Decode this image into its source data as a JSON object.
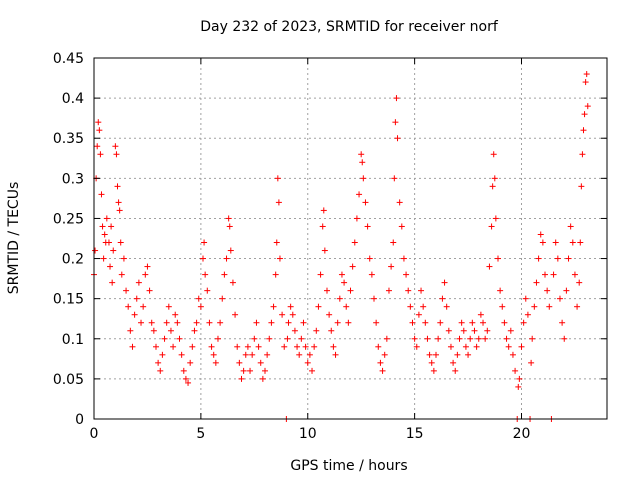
{
  "chart_data": {
    "type": "scatter",
    "title": "Day 232 of 2023, SRMTID for receiver norf",
    "xlabel": "GPS time / hours",
    "ylabel": "SRMTID / TECUs",
    "xlim": [
      0,
      24
    ],
    "ylim": [
      0,
      0.45
    ],
    "x_ticks": [
      0,
      5,
      10,
      15,
      20
    ],
    "x_tick_labels": [
      "0",
      "5",
      "10",
      "15",
      "20"
    ],
    "y_ticks": [
      0,
      0.05,
      0.1,
      0.15,
      0.2,
      0.25,
      0.3,
      0.35,
      0.4,
      0.45
    ],
    "y_tick_labels": [
      "0",
      "0.05",
      "0.1",
      "0.15",
      "0.2",
      "0.25",
      "0.3",
      "0.35",
      "0.4",
      "0.45"
    ],
    "grid": true,
    "marker": "+",
    "series": [
      {
        "name": "SRMTID",
        "color": "#ff0000",
        "points": [
          [
            0.0,
            0.18
          ],
          [
            0.05,
            0.21
          ],
          [
            0.1,
            0.3
          ],
          [
            0.15,
            0.34
          ],
          [
            0.2,
            0.37
          ],
          [
            0.25,
            0.36
          ],
          [
            0.3,
            0.33
          ],
          [
            0.35,
            0.28
          ],
          [
            0.4,
            0.24
          ],
          [
            0.45,
            0.2
          ],
          [
            0.5,
            0.23
          ],
          [
            0.55,
            0.22
          ],
          [
            0.6,
            0.25
          ],
          [
            0.7,
            0.22
          ],
          [
            0.75,
            0.19
          ],
          [
            0.8,
            0.24
          ],
          [
            0.85,
            0.17
          ],
          [
            0.9,
            0.21
          ],
          [
            1.0,
            0.34
          ],
          [
            1.05,
            0.33
          ],
          [
            1.1,
            0.29
          ],
          [
            1.15,
            0.27
          ],
          [
            1.2,
            0.26
          ],
          [
            1.25,
            0.22
          ],
          [
            1.3,
            0.18
          ],
          [
            1.4,
            0.2
          ],
          [
            1.5,
            0.16
          ],
          [
            1.6,
            0.14
          ],
          [
            1.7,
            0.11
          ],
          [
            1.8,
            0.09
          ],
          [
            1.9,
            0.13
          ],
          [
            2.0,
            0.15
          ],
          [
            2.1,
            0.17
          ],
          [
            2.2,
            0.12
          ],
          [
            2.3,
            0.14
          ],
          [
            2.4,
            0.18
          ],
          [
            2.5,
            0.19
          ],
          [
            2.6,
            0.16
          ],
          [
            2.7,
            0.12
          ],
          [
            2.8,
            0.11
          ],
          [
            2.9,
            0.09
          ],
          [
            3.0,
            0.07
          ],
          [
            3.1,
            0.06
          ],
          [
            3.2,
            0.08
          ],
          [
            3.3,
            0.1
          ],
          [
            3.4,
            0.12
          ],
          [
            3.5,
            0.14
          ],
          [
            3.6,
            0.11
          ],
          [
            3.7,
            0.09
          ],
          [
            3.8,
            0.13
          ],
          [
            3.9,
            0.12
          ],
          [
            4.0,
            0.1
          ],
          [
            4.1,
            0.08
          ],
          [
            4.2,
            0.06
          ],
          [
            4.3,
            0.05
          ],
          [
            4.4,
            0.045
          ],
          [
            4.5,
            0.07
          ],
          [
            4.6,
            0.09
          ],
          [
            4.7,
            0.11
          ],
          [
            4.8,
            0.12
          ],
          [
            4.9,
            0.15
          ],
          [
            5.0,
            0.14
          ],
          [
            5.1,
            0.2
          ],
          [
            5.15,
            0.22
          ],
          [
            5.2,
            0.18
          ],
          [
            5.3,
            0.16
          ],
          [
            5.4,
            0.12
          ],
          [
            5.5,
            0.09
          ],
          [
            5.6,
            0.08
          ],
          [
            5.7,
            0.07
          ],
          [
            5.8,
            0.1
          ],
          [
            5.9,
            0.12
          ],
          [
            6.0,
            0.15
          ],
          [
            6.1,
            0.18
          ],
          [
            6.2,
            0.2
          ],
          [
            6.3,
            0.25
          ],
          [
            6.35,
            0.24
          ],
          [
            6.4,
            0.21
          ],
          [
            6.5,
            0.17
          ],
          [
            6.6,
            0.13
          ],
          [
            6.7,
            0.09
          ],
          [
            6.8,
            0.07
          ],
          [
            6.9,
            0.05
          ],
          [
            7.0,
            0.06
          ],
          [
            7.1,
            0.08
          ],
          [
            7.2,
            0.09
          ],
          [
            7.3,
            0.06
          ],
          [
            7.4,
            0.08
          ],
          [
            7.5,
            0.1
          ],
          [
            7.6,
            0.12
          ],
          [
            7.7,
            0.09
          ],
          [
            7.8,
            0.07
          ],
          [
            7.9,
            0.05
          ],
          [
            8.0,
            0.06
          ],
          [
            8.1,
            0.08
          ],
          [
            8.2,
            0.1
          ],
          [
            8.3,
            0.12
          ],
          [
            8.4,
            0.14
          ],
          [
            8.5,
            0.18
          ],
          [
            8.55,
            0.22
          ],
          [
            8.6,
            0.3
          ],
          [
            8.65,
            0.27
          ],
          [
            8.7,
            0.2
          ],
          [
            8.8,
            0.13
          ],
          [
            8.9,
            0.09
          ],
          [
            9.0,
            0.0
          ],
          [
            9.05,
            0.1
          ],
          [
            9.1,
            0.12
          ],
          [
            9.2,
            0.14
          ],
          [
            9.3,
            0.13
          ],
          [
            9.4,
            0.11
          ],
          [
            9.5,
            0.09
          ],
          [
            9.6,
            0.08
          ],
          [
            9.7,
            0.1
          ],
          [
            9.8,
            0.12
          ],
          [
            9.9,
            0.09
          ],
          [
            10.0,
            0.07
          ],
          [
            10.1,
            0.08
          ],
          [
            10.2,
            0.06
          ],
          [
            10.3,
            0.09
          ],
          [
            10.4,
            0.11
          ],
          [
            10.5,
            0.14
          ],
          [
            10.6,
            0.18
          ],
          [
            10.7,
            0.24
          ],
          [
            10.75,
            0.26
          ],
          [
            10.8,
            0.21
          ],
          [
            10.9,
            0.16
          ],
          [
            11.0,
            0.13
          ],
          [
            11.1,
            0.11
          ],
          [
            11.2,
            0.09
          ],
          [
            11.3,
            0.08
          ],
          [
            11.4,
            0.12
          ],
          [
            11.5,
            0.15
          ],
          [
            11.6,
            0.18
          ],
          [
            11.7,
            0.17
          ],
          [
            11.8,
            0.14
          ],
          [
            11.9,
            0.12
          ],
          [
            12.0,
            0.16
          ],
          [
            12.1,
            0.19
          ],
          [
            12.2,
            0.22
          ],
          [
            12.3,
            0.25
          ],
          [
            12.4,
            0.28
          ],
          [
            12.5,
            0.33
          ],
          [
            12.55,
            0.32
          ],
          [
            12.6,
            0.3
          ],
          [
            12.7,
            0.27
          ],
          [
            12.8,
            0.24
          ],
          [
            12.9,
            0.2
          ],
          [
            13.0,
            0.18
          ],
          [
            13.1,
            0.15
          ],
          [
            13.2,
            0.12
          ],
          [
            13.3,
            0.09
          ],
          [
            13.4,
            0.07
          ],
          [
            13.5,
            0.06
          ],
          [
            13.6,
            0.08
          ],
          [
            13.7,
            0.1
          ],
          [
            13.8,
            0.16
          ],
          [
            13.9,
            0.19
          ],
          [
            14.0,
            0.22
          ],
          [
            14.05,
            0.3
          ],
          [
            14.1,
            0.37
          ],
          [
            14.15,
            0.4
          ],
          [
            14.2,
            0.35
          ],
          [
            14.3,
            0.27
          ],
          [
            14.4,
            0.24
          ],
          [
            14.5,
            0.2
          ],
          [
            14.6,
            0.18
          ],
          [
            14.7,
            0.16
          ],
          [
            14.8,
            0.14
          ],
          [
            14.9,
            0.12
          ],
          [
            15.0,
            0.1
          ],
          [
            15.1,
            0.09
          ],
          [
            15.2,
            0.13
          ],
          [
            15.3,
            0.16
          ],
          [
            15.4,
            0.14
          ],
          [
            15.5,
            0.12
          ],
          [
            15.6,
            0.1
          ],
          [
            15.7,
            0.08
          ],
          [
            15.8,
            0.07
          ],
          [
            15.9,
            0.06
          ],
          [
            16.0,
            0.08
          ],
          [
            16.1,
            0.1
          ],
          [
            16.2,
            0.12
          ],
          [
            16.3,
            0.15
          ],
          [
            16.4,
            0.17
          ],
          [
            16.5,
            0.14
          ],
          [
            16.6,
            0.11
          ],
          [
            16.7,
            0.09
          ],
          [
            16.8,
            0.07
          ],
          [
            16.9,
            0.06
          ],
          [
            17.0,
            0.08
          ],
          [
            17.1,
            0.1
          ],
          [
            17.2,
            0.12
          ],
          [
            17.3,
            0.11
          ],
          [
            17.4,
            0.09
          ],
          [
            17.5,
            0.08
          ],
          [
            17.6,
            0.1
          ],
          [
            17.7,
            0.12
          ],
          [
            17.8,
            0.11
          ],
          [
            17.9,
            0.09
          ],
          [
            18.0,
            0.1
          ],
          [
            18.1,
            0.13
          ],
          [
            18.2,
            0.12
          ],
          [
            18.3,
            0.1
          ],
          [
            18.4,
            0.11
          ],
          [
            18.5,
            0.19
          ],
          [
            18.6,
            0.24
          ],
          [
            18.65,
            0.29
          ],
          [
            18.7,
            0.33
          ],
          [
            18.75,
            0.3
          ],
          [
            18.8,
            0.25
          ],
          [
            18.9,
            0.2
          ],
          [
            19.0,
            0.16
          ],
          [
            19.1,
            0.14
          ],
          [
            19.2,
            0.12
          ],
          [
            19.3,
            0.1
          ],
          [
            19.4,
            0.09
          ],
          [
            19.5,
            0.11
          ],
          [
            19.6,
            0.08
          ],
          [
            19.7,
            0.06
          ],
          [
            19.8,
            0.0
          ],
          [
            19.85,
            0.04
          ],
          [
            19.9,
            0.05
          ],
          [
            20.0,
            0.09
          ],
          [
            20.1,
            0.12
          ],
          [
            20.2,
            0.15
          ],
          [
            20.3,
            0.13
          ],
          [
            20.4,
            0.0
          ],
          [
            20.45,
            0.07
          ],
          [
            20.5,
            0.1
          ],
          [
            20.6,
            0.14
          ],
          [
            20.7,
            0.17
          ],
          [
            20.8,
            0.2
          ],
          [
            20.9,
            0.23
          ],
          [
            21.0,
            0.22
          ],
          [
            21.1,
            0.18
          ],
          [
            21.2,
            0.16
          ],
          [
            21.3,
            0.14
          ],
          [
            21.4,
            0.0
          ],
          [
            21.5,
            0.18
          ],
          [
            21.6,
            0.22
          ],
          [
            21.7,
            0.2
          ],
          [
            21.8,
            0.15
          ],
          [
            21.9,
            0.12
          ],
          [
            22.0,
            0.1
          ],
          [
            22.1,
            0.16
          ],
          [
            22.2,
            0.2
          ],
          [
            22.3,
            0.24
          ],
          [
            22.4,
            0.22
          ],
          [
            22.5,
            0.18
          ],
          [
            22.6,
            0.14
          ],
          [
            22.7,
            0.17
          ],
          [
            22.75,
            0.22
          ],
          [
            22.8,
            0.29
          ],
          [
            22.85,
            0.33
          ],
          [
            22.9,
            0.36
          ],
          [
            22.95,
            0.38
          ],
          [
            23.0,
            0.42
          ],
          [
            23.05,
            0.43
          ],
          [
            23.1,
            0.39
          ]
        ]
      }
    ]
  }
}
